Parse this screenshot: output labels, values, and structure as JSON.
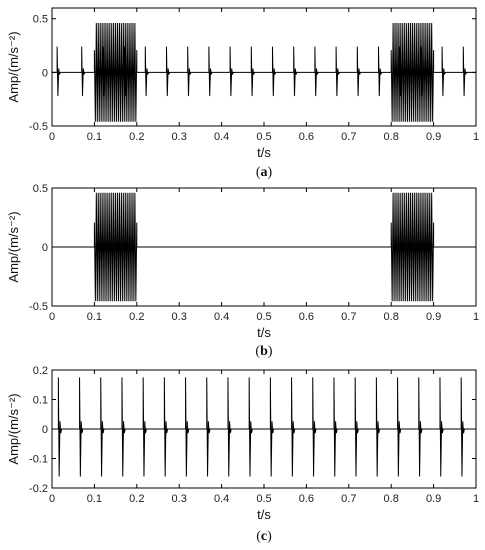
{
  "chart_data": [
    {
      "type": "line",
      "caption_letter": "a",
      "xlabel": "t/s",
      "ylabel": "Amp/(m/s⁻²)",
      "xlim": [
        0,
        1
      ],
      "ylim": [
        -0.5,
        0.6
      ],
      "xticks": [
        0,
        0.1,
        0.2,
        0.3,
        0.4,
        0.5,
        0.6,
        0.7,
        0.8,
        0.9,
        1
      ],
      "xtick_labels": [
        "0",
        "0.1",
        "0.2",
        "0.3",
        "0.4",
        "0.5",
        "0.6",
        "0.7",
        "0.8",
        "0.9",
        "1"
      ],
      "yticks": [
        -0.5,
        0,
        0.5
      ],
      "ytick_labels": [
        "-0.5",
        "0",
        "0.5"
      ],
      "impulse_times": [
        0.012,
        0.07,
        0.12,
        0.17,
        0.22,
        0.27,
        0.32,
        0.37,
        0.42,
        0.47,
        0.52,
        0.57,
        0.62,
        0.67,
        0.72,
        0.77,
        0.82,
        0.87,
        0.92,
        0.97
      ],
      "impulse_amplitude": 0.24,
      "burst_intervals": [
        [
          0.1,
          0.2
        ],
        [
          0.8,
          0.9
        ]
      ],
      "burst_amplitude": 0.46,
      "grid": false
    },
    {
      "type": "line",
      "caption_letter": "b",
      "xlabel": "t/s",
      "ylabel": "Amp/(m/s⁻²)",
      "xlim": [
        0,
        1
      ],
      "ylim": [
        -0.5,
        0.5
      ],
      "xticks": [
        0,
        0.1,
        0.2,
        0.3,
        0.4,
        0.5,
        0.6,
        0.7,
        0.8,
        0.9,
        1
      ],
      "xtick_labels": [
        "0",
        "0.1",
        "0.2",
        "0.3",
        "0.4",
        "0.5",
        "0.6",
        "0.7",
        "0.8",
        "0.9",
        "1"
      ],
      "yticks": [
        -0.5,
        0,
        0.5
      ],
      "ytick_labels": [
        "-0.5",
        "0",
        "0.5"
      ],
      "burst_intervals": [
        [
          0.1,
          0.2
        ],
        [
          0.8,
          0.9
        ]
      ],
      "burst_amplitude": 0.46,
      "grid": false
    },
    {
      "type": "line",
      "caption_letter": "c",
      "xlabel": "t/s",
      "ylabel": "Amp/(m/s⁻²)",
      "xlim": [
        0,
        1
      ],
      "ylim": [
        -0.2,
        0.2
      ],
      "xticks": [
        0,
        0.1,
        0.2,
        0.3,
        0.4,
        0.5,
        0.6,
        0.7,
        0.8,
        0.9,
        1
      ],
      "xtick_labels": [
        "0",
        "0.1",
        "0.2",
        "0.3",
        "0.4",
        "0.5",
        "0.6",
        "0.7",
        "0.8",
        "0.9",
        "1"
      ],
      "yticks": [
        -0.2,
        -0.1,
        0,
        0.1,
        0.2
      ],
      "ytick_labels": [
        "-0.2",
        "-0.1",
        "0",
        "0.1",
        "0.2"
      ],
      "impulse_times": [
        0.015,
        0.065,
        0.115,
        0.165,
        0.215,
        0.265,
        0.315,
        0.365,
        0.415,
        0.465,
        0.515,
        0.565,
        0.615,
        0.665,
        0.715,
        0.765,
        0.815,
        0.865,
        0.915,
        0.965
      ],
      "impulse_amplitude": 0.175,
      "grid": false
    }
  ]
}
